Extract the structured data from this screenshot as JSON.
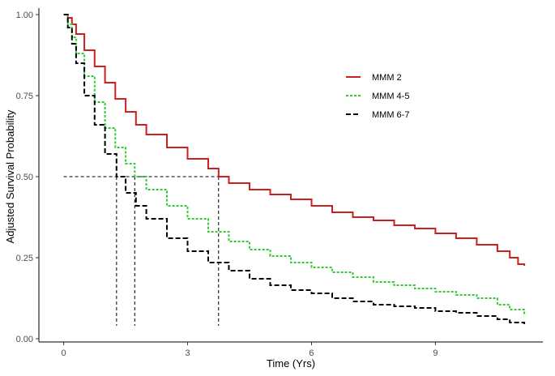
{
  "chart_data": {
    "type": "line",
    "title": "",
    "xlabel": "Time (Yrs)",
    "ylabel": "Adjusted Survival Probability",
    "xlim": [
      -0.6,
      11.6
    ],
    "ylim": [
      -0.01,
      1.02
    ],
    "x_ticks": [
      0,
      3,
      6,
      9
    ],
    "x_tick_labels": [
      "0",
      "3",
      "6",
      "9"
    ],
    "y_ticks": [
      0.0,
      0.25,
      0.5,
      0.75,
      1.0
    ],
    "y_tick_labels": [
      "0.00",
      "0.25",
      "0.50",
      "0.75",
      "1.00"
    ],
    "grid": false,
    "legend_position": "top-right",
    "series": [
      {
        "name": "MMM 2",
        "color": "#CC1F1F",
        "dash": "solid",
        "x": [
          0,
          0.1,
          0.2,
          0.3,
          0.5,
          0.75,
          1.0,
          1.25,
          1.5,
          1.75,
          2.0,
          2.5,
          3.0,
          3.5,
          3.75,
          4.0,
          4.5,
          5.0,
          5.5,
          6.0,
          6.5,
          7.0,
          7.5,
          8.0,
          8.5,
          9.0,
          9.5,
          10.0,
          10.5,
          10.8,
          11.0,
          11.15
        ],
        "y": [
          1.0,
          0.99,
          0.97,
          0.94,
          0.89,
          0.84,
          0.79,
          0.74,
          0.7,
          0.66,
          0.63,
          0.59,
          0.555,
          0.525,
          0.5,
          0.48,
          0.46,
          0.445,
          0.43,
          0.41,
          0.39,
          0.375,
          0.365,
          0.35,
          0.34,
          0.325,
          0.31,
          0.29,
          0.27,
          0.25,
          0.23,
          0.225
        ]
      },
      {
        "name": "MMM 4-5",
        "color": "#33CC33",
        "dash": "dotted",
        "x": [
          0,
          0.1,
          0.2,
          0.3,
          0.5,
          0.75,
          1.0,
          1.25,
          1.5,
          1.72,
          2.0,
          2.5,
          3.0,
          3.5,
          4.0,
          4.5,
          5.0,
          5.5,
          6.0,
          6.5,
          7.0,
          7.5,
          8.0,
          8.5,
          9.0,
          9.5,
          10.0,
          10.5,
          10.8,
          11.15
        ],
        "y": [
          1.0,
          0.97,
          0.93,
          0.88,
          0.81,
          0.73,
          0.65,
          0.59,
          0.54,
          0.5,
          0.46,
          0.41,
          0.37,
          0.33,
          0.3,
          0.275,
          0.255,
          0.235,
          0.22,
          0.205,
          0.19,
          0.175,
          0.165,
          0.155,
          0.145,
          0.135,
          0.125,
          0.105,
          0.09,
          0.075
        ]
      },
      {
        "name": "MMM 6-7",
        "color": "#000000",
        "dash": "dashed",
        "x": [
          0,
          0.1,
          0.2,
          0.3,
          0.5,
          0.75,
          1.0,
          1.28,
          1.5,
          1.75,
          2.0,
          2.5,
          3.0,
          3.5,
          4.0,
          4.5,
          5.0,
          5.5,
          6.0,
          6.5,
          7.0,
          7.5,
          8.0,
          8.5,
          9.0,
          9.5,
          10.0,
          10.5,
          10.8,
          11.15
        ],
        "y": [
          1.0,
          0.96,
          0.91,
          0.85,
          0.75,
          0.66,
          0.57,
          0.5,
          0.45,
          0.41,
          0.37,
          0.31,
          0.27,
          0.235,
          0.21,
          0.185,
          0.165,
          0.15,
          0.14,
          0.125,
          0.115,
          0.105,
          0.1,
          0.095,
          0.085,
          0.08,
          0.07,
          0.06,
          0.05,
          0.045
        ]
      }
    ],
    "reference_lines": {
      "y": 0.5,
      "median_x": [
        1.28,
        1.72,
        3.75
      ],
      "from_x": 0,
      "to_y": 0.04
    }
  }
}
